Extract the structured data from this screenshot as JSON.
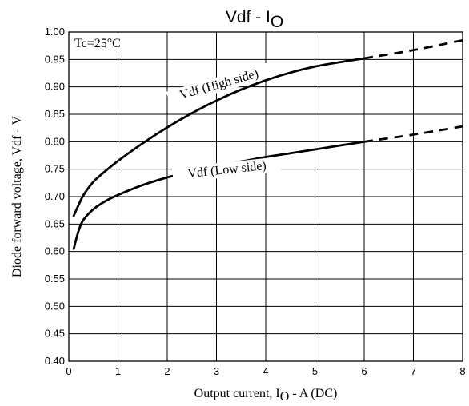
{
  "chart_data": {
    "type": "line",
    "title_main": "Vdf - I",
    "title_sub": "O",
    "xlabel_pre": "Output current, I",
    "xlabel_sub": "O",
    "xlabel_post": " - A (DC)",
    "ylabel": "Diode forward voltage, Vdf - V",
    "xlim": [
      0,
      8
    ],
    "ylim": [
      0.4,
      1.0
    ],
    "xticks": [
      "0",
      "1",
      "2",
      "3",
      "4",
      "5",
      "6",
      "7",
      "8"
    ],
    "yticks": [
      "0.40",
      "0.45",
      "0.50",
      "0.55",
      "0.60",
      "0.65",
      "0.70",
      "0.75",
      "0.80",
      "0.85",
      "0.90",
      "0.95",
      "1.00"
    ],
    "grid": true,
    "condition_label": "Tc=25°C",
    "series": [
      {
        "name": "Vdf (High side)",
        "label": "Vdf (High side)",
        "x": [
          0.1,
          0.2,
          0.3,
          0.5,
          0.75,
          1.0,
          1.5,
          2.0,
          2.5,
          3.0,
          3.5,
          4.0,
          4.5,
          5.0,
          5.5,
          6.0
        ],
        "y": [
          0.665,
          0.685,
          0.703,
          0.727,
          0.747,
          0.765,
          0.797,
          0.826,
          0.852,
          0.875,
          0.895,
          0.912,
          0.926,
          0.937,
          0.945,
          0.952
        ],
        "extrapolated_x": [
          6.0,
          7.0,
          8.0
        ],
        "extrapolated_y": [
          0.952,
          0.967,
          0.985
        ]
      },
      {
        "name": "Vdf (Low side)",
        "label": "Vdf (Low side)",
        "x": [
          0.1,
          0.2,
          0.3,
          0.5,
          0.75,
          1.0,
          1.5,
          2.0,
          2.5,
          3.0,
          3.5,
          4.0,
          4.5,
          5.0,
          5.5,
          6.0
        ],
        "y": [
          0.605,
          0.638,
          0.658,
          0.677,
          0.692,
          0.703,
          0.721,
          0.735,
          0.746,
          0.756,
          0.764,
          0.772,
          0.779,
          0.786,
          0.793,
          0.8
        ],
        "extrapolated_x": [
          6.0,
          7.0,
          8.0
        ],
        "extrapolated_y": [
          0.8,
          0.813,
          0.828
        ]
      }
    ]
  }
}
